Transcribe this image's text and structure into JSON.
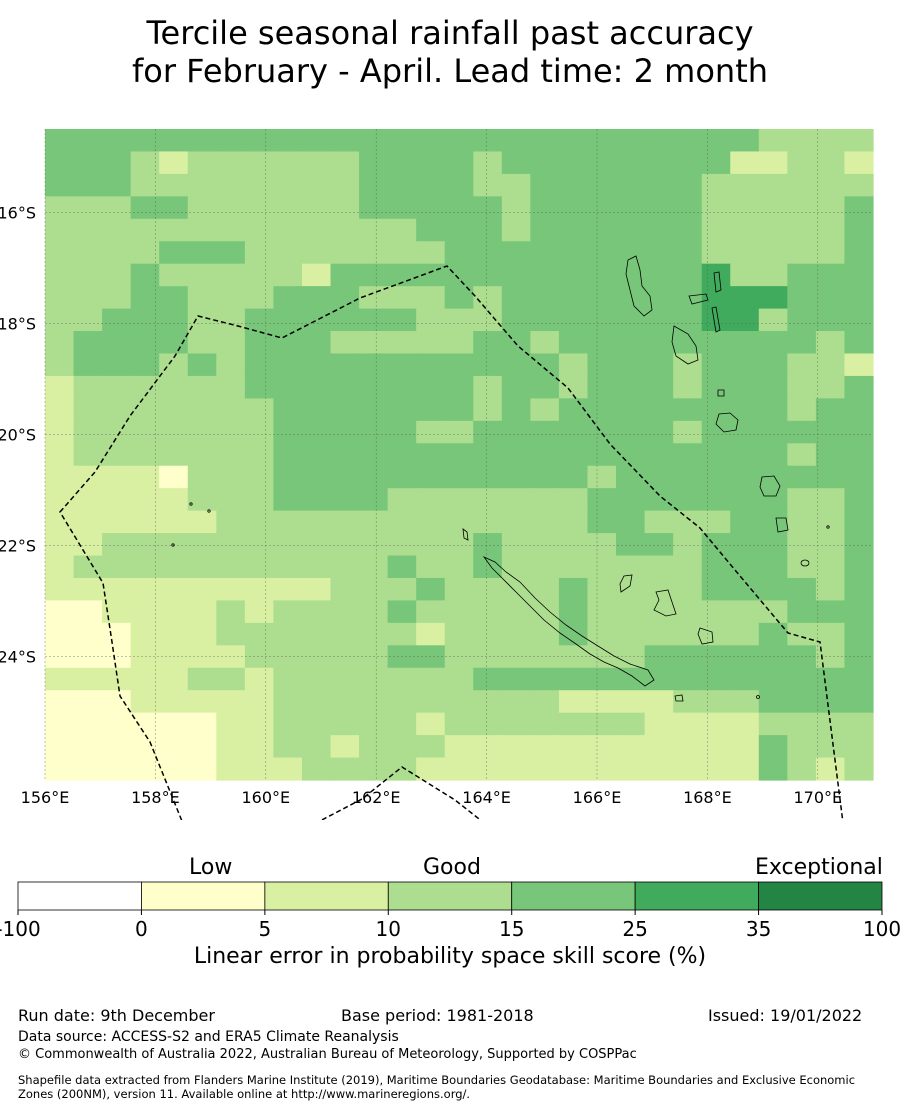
{
  "title": {
    "line1": "Tercile seasonal rainfall past accuracy",
    "line2": "for February - April. Lead time: 2 month"
  },
  "map": {
    "lon_ticks": [
      "156°E",
      "158°E",
      "160°E",
      "162°E",
      "164°E",
      "166°E",
      "168°E",
      "170°E"
    ],
    "lat_ticks": [
      "16°S",
      "18°S",
      "20°S",
      "22°S",
      "24°S"
    ],
    "lon_range": [
      156,
      171
    ],
    "lat_range": [
      -26.2,
      -14.5
    ]
  },
  "colorbar": {
    "categories": [
      "Low",
      "Good",
      "Exceptional"
    ],
    "tick_labels": [
      "-100",
      "0",
      "5",
      "10",
      "15",
      "25",
      "35",
      "100"
    ],
    "colors": [
      "#ffffff",
      "#ffffcc",
      "#d9f0a3",
      "#addd8e",
      "#78c679",
      "#41ab5d",
      "#238443"
    ],
    "title": "Linear error in probability space skill score (%)"
  },
  "footer": {
    "run_date": "Run date: 9th December",
    "base_period": "Base period: 1981-2018",
    "issued": "Issued: 19/01/2022",
    "data_source": "Data source: ACCESS-S2 and ERA5 Climate Reanalysis",
    "copyright": "© Commonwealth of Australia 2022, Australian Bureau of Meteorology, Supported by COSPPac",
    "shapefile_line1": "Shapefile data extracted from Flanders Marine Institute (2019), Maritime Boundaries Geodatabase: Maritime Boundaries and Exclusive Economic",
    "shapefile_line2": "Zones (200NM), version 11. Available online at http://www.marineregions.org/."
  }
}
